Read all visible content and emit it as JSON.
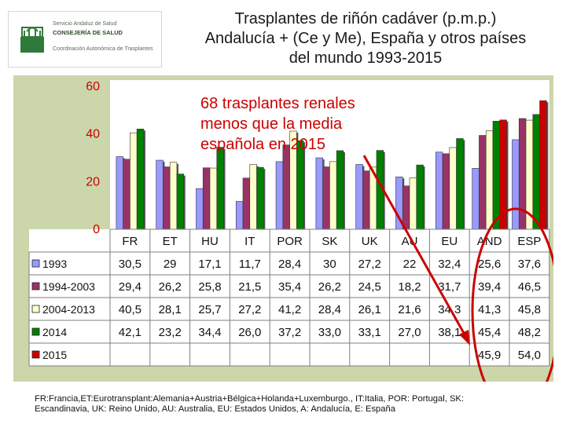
{
  "logo": {
    "line1": "Servicio Andaluz de Salud",
    "line2": "CONSEJERÍA DE SALUD",
    "line3": "Coordinación Autonómica de Trasplantes"
  },
  "title": {
    "line1": "Trasplantes de riñón cadáver (p.m.p.)",
    "line2": "Andalucía + (Ce y Me), España y otros países",
    "line3": "del mundo 1993-2015"
  },
  "annotation": {
    "line1": "68 trasplantes renales",
    "line2": "menos que la media",
    "line3": "española en 2015",
    "color": "#cc0000"
  },
  "footnote": {
    "line1": "FR:Francia,ET:Eurotransplant:Alemania+Austria+Bélgica+Holanda+Luxemburgo., IT:Italia, POR: Portugal, SK:",
    "line2": "Escandinavia, UK: Reino Unido, AU: Australia, EU: Estados Unidos, A: Andalucía, E: España"
  },
  "chart_data": {
    "type": "bar",
    "categories": [
      "FR",
      "ET",
      "HU",
      "IT",
      "POR",
      "SK",
      "UK",
      "AU",
      "EU",
      "AND",
      "ESP"
    ],
    "yticks": [
      "0",
      "20",
      "40",
      "60"
    ],
    "ylim": [
      0,
      60
    ],
    "series": [
      {
        "name": "1993",
        "color": "#9999ff",
        "values": [
          30.5,
          29,
          17.1,
          11.7,
          28.4,
          30,
          27.2,
          22,
          32.4,
          25.6,
          37.6
        ],
        "labels": [
          "30,5",
          "29",
          "17,1",
          "11,7",
          "28,4",
          "30",
          "27,2",
          "22",
          "32,4",
          "25,6",
          "37,6"
        ]
      },
      {
        "name": "1994-2003",
        "color": "#993366",
        "values": [
          29.4,
          26.2,
          25.8,
          21.5,
          35.4,
          26.2,
          24.5,
          18.2,
          31.7,
          39.4,
          46.5
        ],
        "labels": [
          "29,4",
          "26,2",
          "25,8",
          "21,5",
          "35,4",
          "26,2",
          "24,5",
          "18,2",
          "31,7",
          "39,4",
          "46,5"
        ]
      },
      {
        "name": "2004-2013",
        "color": "#ffffcc",
        "values": [
          40.5,
          28.1,
          25.7,
          27.2,
          41.2,
          28.4,
          26.1,
          21.6,
          34.3,
          41.3,
          45.8
        ],
        "labels": [
          "40,5",
          "28,1",
          "25,7",
          "27,2",
          "41,2",
          "28,4",
          "26,1",
          "21,6",
          "34,3",
          "41,3",
          "45,8"
        ]
      },
      {
        "name": "2014",
        "color": "#008000",
        "values": [
          42.1,
          23.2,
          34.4,
          26.0,
          37.2,
          33.0,
          33.1,
          27.0,
          38.1,
          45.4,
          48.2
        ],
        "labels": [
          "42,1",
          "23,2",
          "34,4",
          "26,0",
          "37,2",
          "33,0",
          "33,1",
          "27,0",
          "38,1",
          "45,4",
          "48,2"
        ]
      },
      {
        "name": "2015",
        "color": "#cc0000",
        "values": [
          null,
          null,
          null,
          null,
          null,
          null,
          null,
          null,
          null,
          45.9,
          54.0
        ],
        "labels": [
          "",
          "",
          "",
          "",
          "",
          "",
          "",
          "",
          "",
          "45,9",
          "54,0"
        ]
      }
    ],
    "ytick_color": "#cc0000",
    "plot_background": "#ffffff",
    "panel_background": "#cbd7aa",
    "legend": "data-table"
  }
}
